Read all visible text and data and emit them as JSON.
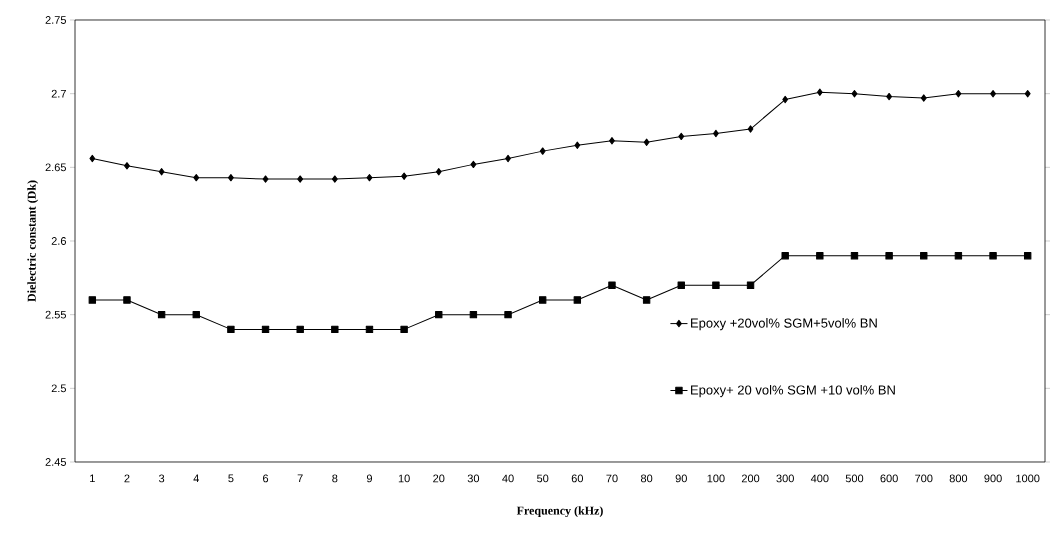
{
  "chart_data": {
    "type": "line",
    "xlabel": "Frequency (kHz)",
    "ylabel": "Dielectric constant  (Dk)",
    "categories": [
      "1",
      "2",
      "3",
      "4",
      "5",
      "6",
      "7",
      "8",
      "9",
      "10",
      "20",
      "30",
      "40",
      "50",
      "60",
      "70",
      "80",
      "90",
      "100",
      "200",
      "300",
      "400",
      "500",
      "600",
      "700",
      "800",
      "900",
      "1000"
    ],
    "series": [
      {
        "name": "Epoxy +20vol% SGM+5vol% BN",
        "color": "#000000",
        "marker": "diamond",
        "values": [
          2.656,
          2.651,
          2.647,
          2.643,
          2.643,
          2.642,
          2.642,
          2.642,
          2.643,
          2.644,
          2.647,
          2.652,
          2.656,
          2.661,
          2.665,
          2.668,
          2.667,
          2.671,
          2.673,
          2.676,
          2.696,
          2.701,
          2.7,
          2.698,
          2.697,
          2.7,
          2.7,
          2.7
        ]
      },
      {
        "name": "Epoxy+ 20 vol% SGM +10 vol% BN",
        "color": "#000000",
        "marker": "square",
        "values": [
          2.56,
          2.56,
          2.55,
          2.55,
          2.54,
          2.54,
          2.54,
          2.54,
          2.54,
          2.54,
          2.55,
          2.55,
          2.55,
          2.56,
          2.56,
          2.57,
          2.56,
          2.57,
          2.57,
          2.57,
          2.59,
          2.59,
          2.59,
          2.59,
          2.59,
          2.59,
          2.59,
          2.59
        ]
      }
    ],
    "ylim": [
      2.45,
      2.75
    ],
    "yticks": [
      2.45,
      2.5,
      2.55,
      2.6,
      2.65,
      2.7,
      2.75
    ],
    "grid": false,
    "legend": "right",
    "line_style": "solid"
  }
}
